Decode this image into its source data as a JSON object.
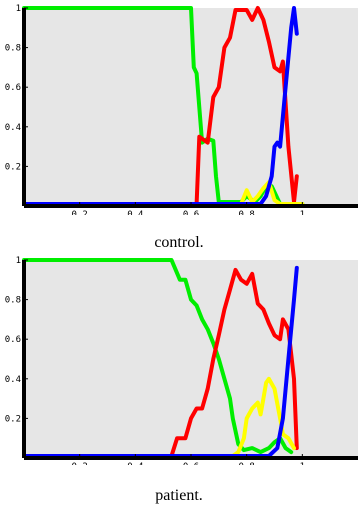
{
  "chart_data": [
    {
      "type": "line",
      "caption": "control.",
      "xlim": [
        0,
        1.2
      ],
      "ylim": [
        0,
        1
      ],
      "xticks": [
        "0.2",
        "0.4",
        "0.6",
        "0.8",
        "1"
      ],
      "yticks": [
        "0.2",
        "0.4",
        "0.6",
        "0.8",
        "1"
      ],
      "grid": false,
      "background": "#e6e6e6",
      "series": [
        {
          "color": "#00ee00",
          "points": [
            [
              0,
              1
            ],
            [
              0.6,
              1
            ],
            [
              0.61,
              0.7
            ],
            [
              0.62,
              0.67
            ],
            [
              0.64,
              0.32
            ],
            [
              0.66,
              0.34
            ],
            [
              0.68,
              0.33
            ],
            [
              0.69,
              0.15
            ],
            [
              0.7,
              0.02
            ],
            [
              0.72,
              0.02
            ],
            [
              0.78,
              0.02
            ],
            [
              0.8,
              0.05
            ],
            [
              0.83,
              0.02
            ],
            [
              0.85,
              0.05
            ],
            [
              0.87,
              0.1
            ],
            [
              0.89,
              0.1
            ],
            [
              0.92,
              0.01
            ],
            [
              1.0,
              0.01
            ]
          ]
        },
        {
          "color": "#ff0000",
          "points": [
            [
              0,
              0.01
            ],
            [
              0.62,
              0.01
            ],
            [
              0.63,
              0.35
            ],
            [
              0.66,
              0.32
            ],
            [
              0.68,
              0.55
            ],
            [
              0.7,
              0.6
            ],
            [
              0.72,
              0.8
            ],
            [
              0.74,
              0.85
            ],
            [
              0.76,
              0.99
            ],
            [
              0.8,
              0.99
            ],
            [
              0.82,
              0.94
            ],
            [
              0.84,
              1.0
            ],
            [
              0.86,
              0.94
            ],
            [
              0.88,
              0.83
            ],
            [
              0.9,
              0.7
            ],
            [
              0.92,
              0.68
            ],
            [
              0.93,
              0.73
            ],
            [
              0.95,
              0.3
            ],
            [
              0.97,
              0.02
            ],
            [
              0.98,
              0.15
            ]
          ]
        },
        {
          "color": "#ffff00",
          "points": [
            [
              0,
              0.01
            ],
            [
              0.78,
              0.01
            ],
            [
              0.8,
              0.08
            ],
            [
              0.82,
              0.02
            ],
            [
              0.84,
              0.05
            ],
            [
              0.86,
              0.09
            ],
            [
              0.88,
              0.12
            ],
            [
              0.9,
              0.03
            ],
            [
              0.92,
              0.01
            ],
            [
              1.0,
              0.01
            ]
          ]
        },
        {
          "color": "#0000ff",
          "points": [
            [
              0,
              0.01
            ],
            [
              0.85,
              0.01
            ],
            [
              0.87,
              0.05
            ],
            [
              0.89,
              0.15
            ],
            [
              0.9,
              0.3
            ],
            [
              0.91,
              0.32
            ],
            [
              0.92,
              0.3
            ],
            [
              0.94,
              0.6
            ],
            [
              0.96,
              0.9
            ],
            [
              0.97,
              1.0
            ],
            [
              0.98,
              0.87
            ]
          ]
        }
      ]
    },
    {
      "type": "line",
      "caption": "patient.",
      "xlim": [
        0,
        1.2
      ],
      "ylim": [
        0,
        1
      ],
      "xticks": [
        "0.2",
        "0.4",
        "0.6",
        "0.8",
        "1"
      ],
      "yticks": [
        "0.2",
        "0.4",
        "0.6",
        "0.8",
        "1"
      ],
      "grid": false,
      "background": "#e6e6e6",
      "series": [
        {
          "color": "#00ee00",
          "points": [
            [
              0,
              1
            ],
            [
              0.53,
              1
            ],
            [
              0.56,
              0.9
            ],
            [
              0.58,
              0.9
            ],
            [
              0.6,
              0.8
            ],
            [
              0.62,
              0.77
            ],
            [
              0.64,
              0.7
            ],
            [
              0.66,
              0.65
            ],
            [
              0.68,
              0.58
            ],
            [
              0.7,
              0.5
            ],
            [
              0.72,
              0.4
            ],
            [
              0.74,
              0.3
            ],
            [
              0.75,
              0.2
            ],
            [
              0.77,
              0.07
            ],
            [
              0.79,
              0.04
            ],
            [
              0.82,
              0.05
            ],
            [
              0.85,
              0.03
            ],
            [
              0.88,
              0.05
            ],
            [
              0.9,
              0.08
            ],
            [
              0.92,
              0.1
            ],
            [
              0.94,
              0.05
            ],
            [
              0.96,
              0.03
            ]
          ]
        },
        {
          "color": "#ff0000",
          "points": [
            [
              0,
              0.01
            ],
            [
              0.53,
              0.01
            ],
            [
              0.55,
              0.1
            ],
            [
              0.58,
              0.1
            ],
            [
              0.6,
              0.2
            ],
            [
              0.62,
              0.25
            ],
            [
              0.64,
              0.25
            ],
            [
              0.66,
              0.35
            ],
            [
              0.68,
              0.5
            ],
            [
              0.7,
              0.62
            ],
            [
              0.72,
              0.75
            ],
            [
              0.74,
              0.85
            ],
            [
              0.76,
              0.95
            ],
            [
              0.78,
              0.9
            ],
            [
              0.8,
              0.88
            ],
            [
              0.82,
              0.93
            ],
            [
              0.84,
              0.78
            ],
            [
              0.86,
              0.75
            ],
            [
              0.88,
              0.68
            ],
            [
              0.9,
              0.62
            ],
            [
              0.92,
              0.6
            ],
            [
              0.93,
              0.7
            ],
            [
              0.95,
              0.65
            ],
            [
              0.97,
              0.4
            ],
            [
              0.98,
              0.05
            ]
          ]
        },
        {
          "color": "#ffff00",
          "points": [
            [
              0,
              0.01
            ],
            [
              0.75,
              0.01
            ],
            [
              0.77,
              0.03
            ],
            [
              0.79,
              0.1
            ],
            [
              0.8,
              0.2
            ],
            [
              0.82,
              0.25
            ],
            [
              0.84,
              0.28
            ],
            [
              0.85,
              0.22
            ],
            [
              0.86,
              0.3
            ],
            [
              0.87,
              0.38
            ],
            [
              0.88,
              0.4
            ],
            [
              0.9,
              0.35
            ],
            [
              0.92,
              0.2
            ],
            [
              0.93,
              0.12
            ],
            [
              0.95,
              0.1
            ],
            [
              0.97,
              0.05
            ]
          ]
        },
        {
          "color": "#0000ff",
          "points": [
            [
              0,
              0.01
            ],
            [
              0.88,
              0.01
            ],
            [
              0.91,
              0.05
            ],
            [
              0.93,
              0.2
            ],
            [
              0.95,
              0.5
            ],
            [
              0.97,
              0.8
            ],
            [
              0.98,
              0.96
            ]
          ]
        }
      ]
    }
  ]
}
